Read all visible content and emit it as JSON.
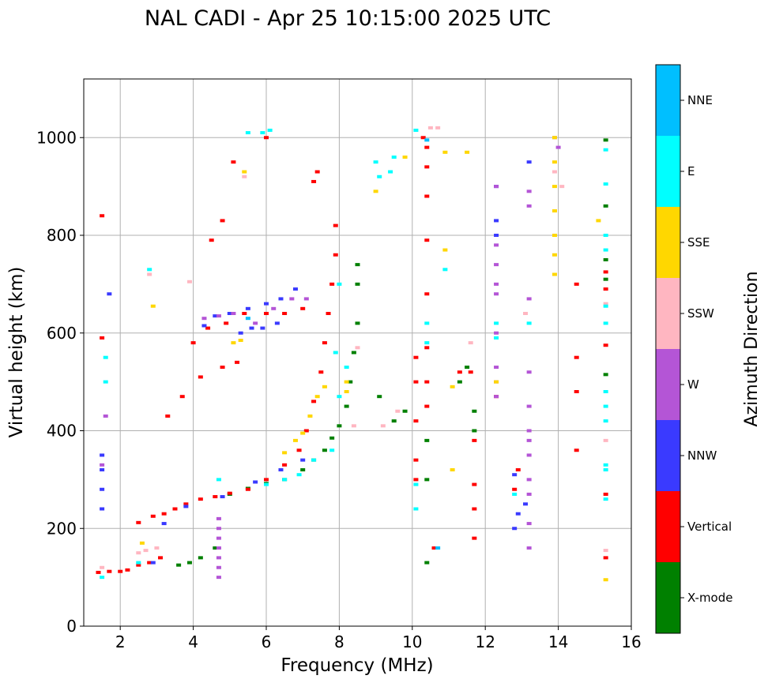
{
  "chart_data": {
    "type": "scatter",
    "title": "NAL CADI - Apr 25 10:15:00 2025 UTC",
    "xlabel": "Frequency (MHz)",
    "ylabel": "Virtual height (km)",
    "xlim": [
      1.0,
      16.0
    ],
    "ylim": [
      0,
      1120
    ],
    "xticks": [
      "2",
      "4",
      "6",
      "8",
      "10",
      "12",
      "14",
      "16"
    ],
    "yticks": [
      "0",
      "200",
      "400",
      "600",
      "800",
      "1000"
    ],
    "grid": true,
    "colorbar": {
      "label": "Azimuth Direction",
      "categories": [
        "X-mode",
        "Vertical",
        "NNW",
        "W",
        "SSW",
        "SSE",
        "E",
        "NNE"
      ],
      "colors": [
        "#008000",
        "#ff0000",
        "#3a3aff",
        "#b455d6",
        "#ffb6c1",
        "#ffd700",
        "#00ffff",
        "#00bfff"
      ]
    },
    "traces": [
      {
        "name": "X-mode",
        "points": [
          [
            3.6,
            125
          ],
          [
            3.9,
            130
          ],
          [
            4.2,
            140
          ],
          [
            4.6,
            160
          ],
          [
            5.0,
            270
          ],
          [
            5.5,
            282
          ],
          [
            6.0,
            292
          ],
          [
            6.5,
            300
          ],
          [
            7.0,
            320
          ],
          [
            7.3,
            340
          ],
          [
            7.6,
            360
          ],
          [
            7.8,
            385
          ],
          [
            8.0,
            410
          ],
          [
            8.2,
            450
          ],
          [
            8.3,
            500
          ],
          [
            8.4,
            560
          ],
          [
            8.5,
            620
          ],
          [
            8.5,
            700
          ],
          [
            8.5,
            740
          ],
          [
            9.1,
            470
          ],
          [
            9.5,
            420
          ],
          [
            9.8,
            440
          ],
          [
            10.4,
            380
          ],
          [
            10.4,
            300
          ],
          [
            10.4,
            130
          ],
          [
            11.3,
            500
          ],
          [
            11.5,
            530
          ],
          [
            11.7,
            440
          ],
          [
            11.7,
            400
          ],
          [
            15.3,
            995
          ],
          [
            15.3,
            860
          ],
          [
            15.3,
            750
          ],
          [
            15.3,
            710
          ],
          [
            15.3,
            515
          ]
        ]
      },
      {
        "name": "Vertical",
        "points": [
          [
            1.4,
            110
          ],
          [
            1.7,
            112
          ],
          [
            2.0,
            112
          ],
          [
            2.2,
            115
          ],
          [
            2.5,
            125
          ],
          [
            2.8,
            130
          ],
          [
            3.1,
            140
          ],
          [
            2.5,
            212
          ],
          [
            2.9,
            225
          ],
          [
            3.2,
            230
          ],
          [
            3.5,
            240
          ],
          [
            3.8,
            250
          ],
          [
            4.2,
            260
          ],
          [
            4.6,
            265
          ],
          [
            5.0,
            272
          ],
          [
            5.5,
            280
          ],
          [
            6.0,
            300
          ],
          [
            6.5,
            330
          ],
          [
            6.9,
            360
          ],
          [
            7.1,
            400
          ],
          [
            7.3,
            460
          ],
          [
            7.5,
            520
          ],
          [
            7.6,
            580
          ],
          [
            7.7,
            640
          ],
          [
            7.8,
            700
          ],
          [
            7.9,
            760
          ],
          [
            7.9,
            820
          ],
          [
            3.3,
            430
          ],
          [
            3.7,
            470
          ],
          [
            4.2,
            510
          ],
          [
            4.8,
            530
          ],
          [
            5.2,
            540
          ],
          [
            4.0,
            580
          ],
          [
            4.4,
            610
          ],
          [
            4.9,
            620
          ],
          [
            5.4,
            640
          ],
          [
            6.0,
            640
          ],
          [
            6.5,
            640
          ],
          [
            7.0,
            650
          ],
          [
            7.3,
            910
          ],
          [
            7.4,
            930
          ],
          [
            4.8,
            830
          ],
          [
            4.5,
            790
          ],
          [
            5.1,
            950
          ],
          [
            6.0,
            1000
          ],
          [
            10.1,
            300
          ],
          [
            10.1,
            340
          ],
          [
            10.1,
            420
          ],
          [
            10.1,
            500
          ],
          [
            10.1,
            550
          ],
          [
            10.4,
            450
          ],
          [
            10.4,
            500
          ],
          [
            10.4,
            570
          ],
          [
            10.4,
            680
          ],
          [
            10.4,
            790
          ],
          [
            10.4,
            880
          ],
          [
            10.4,
            940
          ],
          [
            10.4,
            980
          ],
          [
            10.3,
            1000
          ],
          [
            10.6,
            160
          ],
          [
            11.3,
            520
          ],
          [
            11.6,
            520
          ],
          [
            11.7,
            180
          ],
          [
            11.7,
            240
          ],
          [
            11.7,
            290
          ],
          [
            11.7,
            380
          ],
          [
            12.3,
            470
          ],
          [
            12.8,
            280
          ],
          [
            12.9,
            320
          ],
          [
            14.5,
            360
          ],
          [
            14.5,
            480
          ],
          [
            14.5,
            550
          ],
          [
            14.5,
            700
          ],
          [
            15.3,
            725
          ],
          [
            15.3,
            690
          ],
          [
            15.3,
            575
          ],
          [
            15.3,
            270
          ],
          [
            15.3,
            140
          ],
          [
            1.5,
            590
          ],
          [
            1.5,
            840
          ]
        ]
      },
      {
        "name": "NNW",
        "points": [
          [
            1.5,
            350
          ],
          [
            1.5,
            320
          ],
          [
            1.5,
            280
          ],
          [
            1.5,
            240
          ],
          [
            2.9,
            130
          ],
          [
            4.3,
            615
          ],
          [
            4.6,
            635
          ],
          [
            5.0,
            640
          ],
          [
            5.5,
            650
          ],
          [
            6.0,
            660
          ],
          [
            6.4,
            670
          ],
          [
            6.8,
            690
          ],
          [
            5.3,
            600
          ],
          [
            5.6,
            610
          ],
          [
            5.9,
            610
          ],
          [
            6.3,
            620
          ],
          [
            3.2,
            210
          ],
          [
            3.8,
            245
          ],
          [
            4.8,
            265
          ],
          [
            5.7,
            295
          ],
          [
            6.4,
            320
          ],
          [
            7.0,
            340
          ],
          [
            12.3,
            900
          ],
          [
            12.3,
            830
          ],
          [
            12.3,
            800
          ],
          [
            12.8,
            310
          ],
          [
            12.8,
            200
          ],
          [
            12.9,
            230
          ],
          [
            13.1,
            250
          ],
          [
            13.2,
            950
          ],
          [
            1.7,
            680
          ]
        ]
      },
      {
        "name": "W",
        "points": [
          [
            4.7,
            220
          ],
          [
            4.7,
            200
          ],
          [
            4.7,
            180
          ],
          [
            4.7,
            160
          ],
          [
            4.7,
            140
          ],
          [
            4.7,
            120
          ],
          [
            4.7,
            100
          ],
          [
            4.3,
            630
          ],
          [
            4.7,
            635
          ],
          [
            5.1,
            640
          ],
          [
            5.7,
            620
          ],
          [
            6.2,
            650
          ],
          [
            6.7,
            670
          ],
          [
            7.1,
            670
          ],
          [
            12.3,
            900
          ],
          [
            12.3,
            780
          ],
          [
            12.3,
            740
          ],
          [
            12.3,
            700
          ],
          [
            12.3,
            680
          ],
          [
            12.3,
            600
          ],
          [
            12.3,
            530
          ],
          [
            12.3,
            500
          ],
          [
            12.3,
            470
          ],
          [
            13.2,
            890
          ],
          [
            13.2,
            860
          ],
          [
            13.2,
            670
          ],
          [
            13.2,
            520
          ],
          [
            13.2,
            450
          ],
          [
            13.2,
            400
          ],
          [
            13.2,
            380
          ],
          [
            13.2,
            350
          ],
          [
            13.2,
            300
          ],
          [
            13.2,
            270
          ],
          [
            13.2,
            210
          ],
          [
            13.2,
            160
          ],
          [
            13.9,
            1000
          ],
          [
            14.0,
            980
          ],
          [
            1.5,
            330
          ],
          [
            1.6,
            430
          ]
        ]
      },
      {
        "name": "SSW",
        "points": [
          [
            1.5,
            120
          ],
          [
            2.5,
            150
          ],
          [
            2.7,
            155
          ],
          [
            3.0,
            160
          ],
          [
            8.4,
            410
          ],
          [
            8.5,
            570
          ],
          [
            9.2,
            410
          ],
          [
            9.6,
            440
          ],
          [
            10.5,
            1020
          ],
          [
            10.7,
            1020
          ],
          [
            11.6,
            580
          ],
          [
            13.9,
            930
          ],
          [
            14.1,
            900
          ],
          [
            13.1,
            640
          ],
          [
            15.3,
            380
          ],
          [
            15.3,
            660
          ],
          [
            15.3,
            155
          ],
          [
            5.4,
            920
          ],
          [
            2.8,
            720
          ],
          [
            3.9,
            705
          ]
        ]
      },
      {
        "name": "SSE",
        "points": [
          [
            6.5,
            355
          ],
          [
            6.8,
            380
          ],
          [
            7.0,
            395
          ],
          [
            7.2,
            430
          ],
          [
            7.4,
            470
          ],
          [
            7.6,
            490
          ],
          [
            8.2,
            480
          ],
          [
            8.2,
            500
          ],
          [
            5.1,
            580
          ],
          [
            5.3,
            585
          ],
          [
            5.4,
            930
          ],
          [
            9.0,
            890
          ],
          [
            9.8,
            960
          ],
          [
            10.9,
            770
          ],
          [
            10.9,
            970
          ],
          [
            11.1,
            320
          ],
          [
            11.1,
            490
          ],
          [
            11.5,
            970
          ],
          [
            12.3,
            500
          ],
          [
            13.9,
            1000
          ],
          [
            13.9,
            950
          ],
          [
            13.9,
            900
          ],
          [
            13.9,
            850
          ],
          [
            13.9,
            800
          ],
          [
            13.9,
            760
          ],
          [
            13.9,
            720
          ],
          [
            15.1,
            830
          ],
          [
            15.3,
            95
          ],
          [
            2.6,
            170
          ],
          [
            2.9,
            655
          ]
        ]
      },
      {
        "name": "E",
        "points": [
          [
            1.5,
            100
          ],
          [
            1.6,
            550
          ],
          [
            1.6,
            500
          ],
          [
            2.5,
            130
          ],
          [
            2.8,
            730
          ],
          [
            5.5,
            1010
          ],
          [
            5.9,
            1010
          ],
          [
            6.1,
            1015
          ],
          [
            6.0,
            290
          ],
          [
            6.5,
            300
          ],
          [
            6.9,
            310
          ],
          [
            7.3,
            340
          ],
          [
            7.8,
            360
          ],
          [
            8.0,
            470
          ],
          [
            7.9,
            560
          ],
          [
            8.2,
            530
          ],
          [
            8.0,
            700
          ],
          [
            9.0,
            950
          ],
          [
            9.1,
            920
          ],
          [
            9.4,
            930
          ],
          [
            9.5,
            960
          ],
          [
            10.1,
            1015
          ],
          [
            10.1,
            290
          ],
          [
            10.1,
            240
          ],
          [
            10.4,
            580
          ],
          [
            10.4,
            620
          ],
          [
            10.9,
            730
          ],
          [
            12.3,
            620
          ],
          [
            12.3,
            590
          ],
          [
            12.8,
            270
          ],
          [
            13.2,
            620
          ],
          [
            15.3,
            975
          ],
          [
            15.3,
            905
          ],
          [
            15.3,
            800
          ],
          [
            15.3,
            770
          ],
          [
            15.3,
            655
          ],
          [
            15.3,
            620
          ],
          [
            15.3,
            480
          ],
          [
            15.3,
            450
          ],
          [
            15.3,
            420
          ],
          [
            15.3,
            330
          ],
          [
            15.3,
            320
          ],
          [
            15.3,
            260
          ],
          [
            4.7,
            300
          ]
        ]
      },
      {
        "name": "NNE",
        "points": [
          [
            10.4,
            995
          ],
          [
            10.7,
            160
          ],
          [
            5.5,
            630
          ]
        ]
      }
    ]
  }
}
